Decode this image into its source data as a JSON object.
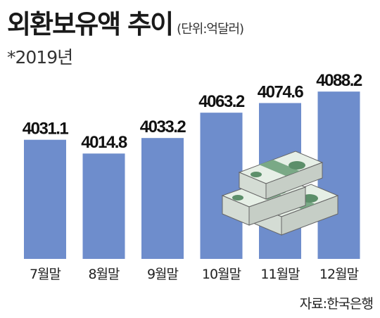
{
  "header": {
    "title": "외환보유액 추이",
    "unit": "(단위:억달러)",
    "note": "*2019년"
  },
  "source": "자료:한국은행",
  "colors": {
    "bar": "#6e8dcc",
    "bill_paper": "#e6efe6",
    "bill_band": "#7aa986",
    "bill_seal": "#5c8f6a"
  },
  "icons": [
    "money-stack-icon"
  ],
  "chart_data": {
    "type": "bar",
    "categories": [
      "7월말",
      "8월말",
      "9월말",
      "10월말",
      "11월말",
      "12월말"
    ],
    "values": [
      4031.1,
      4014.8,
      4033.2,
      4063.2,
      4074.6,
      4088.2
    ],
    "value_labels": [
      "4031.1",
      "4014.8",
      "4033.2",
      "4063.2",
      "4074.6",
      "4088.2"
    ],
    "title": "외환보유액 추이",
    "xlabel": "",
    "ylabel": "",
    "ylim": [
      3890,
      4100
    ],
    "grid": false,
    "legend": "none"
  }
}
